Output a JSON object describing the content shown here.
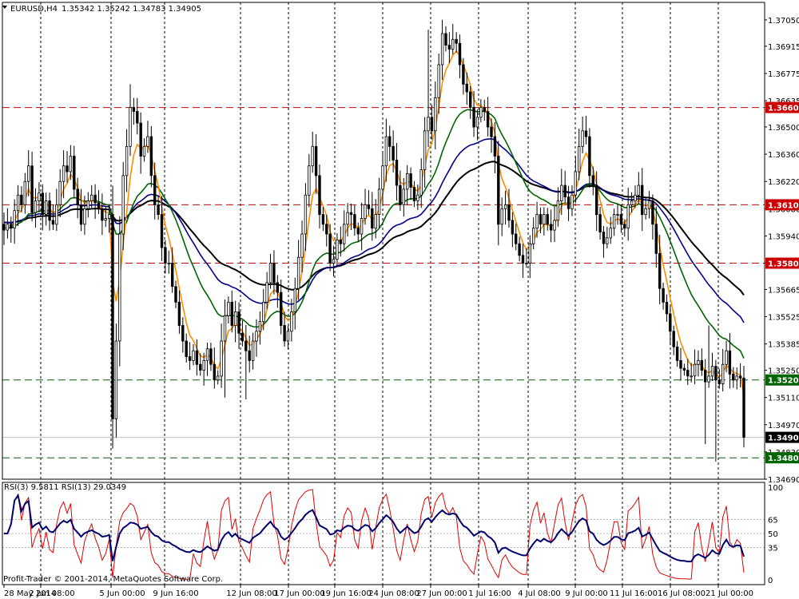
{
  "window_title": "EURUSD,H4",
  "ohlc_text": "1.35342 1.35242 1.34783 1.34905",
  "indicator_title": "RSI(3) 9.5811  RSI(13) 29.0349",
  "watermark": "Profit-Trader  © 2001-2014, MetaQuotes Software Corp.",
  "colors": {
    "candle": "#000000",
    "ma_fast": "#FF8C00",
    "ma_green": "#006400",
    "ma_navy": "#00008B",
    "ma_black": "#000000",
    "resistance": "#CC0000",
    "support": "#006400",
    "rsi_fast": "#DD0000",
    "rsi_slow": "#00006E",
    "grid": "#000000"
  },
  "price_axis_labels": [
    "1.37050",
    "1.36915",
    "1.36775",
    "1.36635",
    "1.36500",
    "1.36360",
    "1.36220",
    "1.36080",
    "1.35940",
    "1.35800",
    "1.35665",
    "1.35525",
    "1.35385",
    "1.35250",
    "1.35110",
    "1.34970",
    "1.34830",
    "1.34690"
  ],
  "rsi_axis_labels": [
    "100",
    "65",
    "50",
    "35",
    "0"
  ],
  "time_axis_labels": [
    "28 May 2014",
    "2 Jun 08:00",
    "5 Jun 00:00",
    "9 Jun 16:00",
    "12 Jun 08:00",
    "17 Jun 00:00",
    "19 Jun 16:00",
    "24 Jun 08:00",
    "27 Jun 00:00",
    "1 Jul 16:00",
    "4 Jul 08:00",
    "9 Jul 00:00",
    "11 Jul 16:00",
    "16 Jul 08:00",
    "21 Jul 00:00"
  ],
  "levels": [
    {
      "label": "1.36600",
      "value": 1.366,
      "kind": "resistance"
    },
    {
      "label": "1.36100",
      "value": 1.361,
      "kind": "resistance"
    },
    {
      "label": "1.35800",
      "value": 1.358,
      "kind": "resistance"
    },
    {
      "label": "1.35200",
      "value": 1.352,
      "kind": "support"
    },
    {
      "label": "1.34800",
      "value": 1.348,
      "kind": "support"
    }
  ],
  "current_price": {
    "label": "1.34905",
    "value": 1.34905
  },
  "chart_data": {
    "type": "candlestick",
    "price_range": [
      1.3469,
      1.3714
    ],
    "rsi_range": [
      0,
      100
    ],
    "rsi_levels": [
      65,
      50,
      35
    ],
    "closes": [
      1.3597,
      1.36,
      1.3598,
      1.3607,
      1.3615,
      1.361,
      1.3622,
      1.363,
      1.3606,
      1.3612,
      1.3616,
      1.3605,
      1.3612,
      1.3602,
      1.36,
      1.361,
      1.3622,
      1.363,
      1.3627,
      1.3635,
      1.3618,
      1.361,
      1.36,
      1.3608,
      1.3612,
      1.3615,
      1.3611,
      1.3608,
      1.3602,
      1.3603,
      1.3605,
      1.35,
      1.354,
      1.3595,
      1.3625,
      1.364,
      1.366,
      1.3658,
      1.3652,
      1.3635,
      1.364,
      1.3645,
      1.3625,
      1.361,
      1.3605,
      1.3588,
      1.358,
      1.358,
      1.3568,
      1.356,
      1.3548,
      1.354,
      1.3532,
      1.353,
      1.3535,
      1.3528,
      1.3525,
      1.353,
      1.3536,
      1.3528,
      1.352,
      1.3522,
      1.354,
      1.3553,
      1.356,
      1.3548,
      1.3555,
      1.3544,
      1.354,
      1.3535,
      1.353,
      1.354,
      1.3545,
      1.355,
      1.356,
      1.357,
      1.358,
      1.357,
      1.3565,
      1.3548,
      1.354,
      1.3545,
      1.3555,
      1.3567,
      1.3583,
      1.3595,
      1.3615,
      1.363,
      1.364,
      1.3625,
      1.3605,
      1.36,
      1.3595,
      1.358,
      1.3582,
      1.3592,
      1.359,
      1.36,
      1.3606,
      1.3605,
      1.3598,
      1.3595,
      1.3603,
      1.361,
      1.3608,
      1.3598,
      1.3605,
      1.3618,
      1.363,
      1.3645,
      1.364,
      1.3633,
      1.362,
      1.361,
      1.3618,
      1.3626,
      1.3619,
      1.3612,
      1.3615,
      1.3628,
      1.3648,
      1.3655,
      1.3648,
      1.3665,
      1.3682,
      1.3698,
      1.3692,
      1.369,
      1.3695,
      1.3693,
      1.3682,
      1.3672,
      1.3668,
      1.366,
      1.365,
      1.3655,
      1.366,
      1.3658,
      1.365,
      1.3645,
      1.3635,
      1.36,
      1.3608,
      1.361,
      1.3602,
      1.3595,
      1.359,
      1.3584,
      1.358,
      1.358,
      1.359,
      1.3598,
      1.3605,
      1.36,
      1.3605,
      1.36,
      1.3597,
      1.3602,
      1.3612,
      1.362,
      1.3614,
      1.3608,
      1.3615,
      1.3627,
      1.364,
      1.3648,
      1.3645,
      1.3625,
      1.362,
      1.3605,
      1.3596,
      1.359,
      1.3593,
      1.3598,
      1.3605,
      1.3605,
      1.36,
      1.3598,
      1.361,
      1.3612,
      1.3615,
      1.362,
      1.3605,
      1.3608,
      1.3612,
      1.36,
      1.3585,
      1.3567,
      1.356,
      1.3554,
      1.3545,
      1.3537,
      1.353,
      1.3526,
      1.3525,
      1.3522,
      1.3522,
      1.3528,
      1.353,
      1.3525,
      1.3519,
      1.3522,
      1.3527,
      1.352,
      1.3518,
      1.3528,
      1.3535,
      1.3523,
      1.352,
      1.3522,
      1.3521,
      1.34905
    ]
  }
}
